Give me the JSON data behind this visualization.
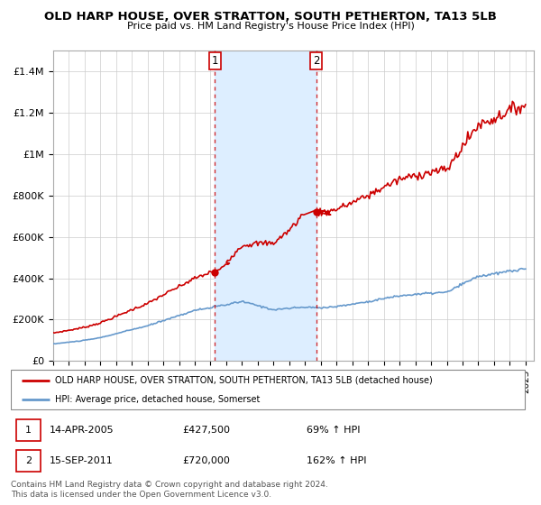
{
  "title": "OLD HARP HOUSE, OVER STRATTON, SOUTH PETHERTON, TA13 5LB",
  "subtitle": "Price paid vs. HM Land Registry's House Price Index (HPI)",
  "ylim": [
    0,
    1500000
  ],
  "yticks": [
    0,
    200000,
    400000,
    600000,
    800000,
    1000000,
    1200000,
    1400000
  ],
  "ytick_labels": [
    "£0",
    "£200K",
    "£400K",
    "£600K",
    "£800K",
    "£1M",
    "£1.2M",
    "£1.4M"
  ],
  "house_color": "#cc0000",
  "hpi_color": "#6699cc",
  "sale1_year": 2005.28,
  "sale1_price": 427500,
  "sale2_year": 2011.71,
  "sale2_price": 720000,
  "x_start_year": 1995,
  "x_end_year": 2025.5,
  "legend_line1": "OLD HARP HOUSE, OVER STRATTON, SOUTH PETHERTON, TA13 5LB (detached house)",
  "legend_line2": "HPI: Average price, detached house, Somerset",
  "footer": "Contains HM Land Registry data © Crown copyright and database right 2024.\nThis data is licensed under the Open Government Licence v3.0.",
  "plot_bg_color": "#ffffff",
  "span_color": "#ddeeff",
  "grid_color": "#cccccc"
}
